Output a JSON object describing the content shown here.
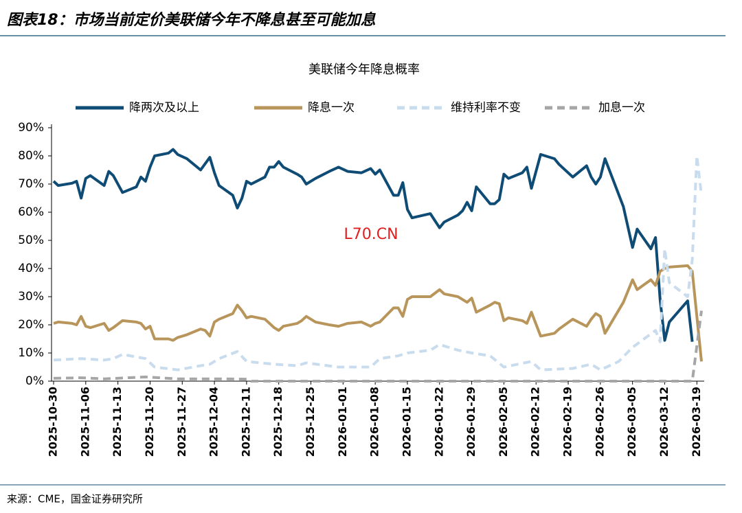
{
  "header": {
    "title": "图表18：市场当前定价美联储今年不降息甚至可能加息"
  },
  "chart_data": {
    "type": "line",
    "title": "美联储今年降息概率",
    "watermark": "L70.CN",
    "xlim": [
      "2025-10-30",
      "2026-03-20"
    ],
    "xticks": [
      "2025-10-30",
      "2025-11-06",
      "2025-11-13",
      "2025-11-20",
      "2025-11-27",
      "2025-12-04",
      "2025-12-11",
      "2025-12-18",
      "2025-12-25",
      "2026-01-01",
      "2026-01-08",
      "2026-01-15",
      "2026-01-22",
      "2026-01-29",
      "2026-02-05",
      "2026-02-12",
      "2026-02-19",
      "2026-02-26",
      "2026-03-05",
      "2026-03-12",
      "2026-03-19"
    ],
    "ylim": [
      0,
      90
    ],
    "yticks": [
      {
        "value": 0,
        "label": "0%"
      },
      {
        "value": 10,
        "label": "10%"
      },
      {
        "value": 20,
        "label": "20%"
      },
      {
        "value": 30,
        "label": "30%"
      },
      {
        "value": 40,
        "label": "40%"
      },
      {
        "value": 50,
        "label": "50%"
      },
      {
        "value": 60,
        "label": "60%"
      },
      {
        "value": 70,
        "label": "70%"
      },
      {
        "value": 80,
        "label": "80%"
      },
      {
        "value": 90,
        "label": "90%"
      }
    ],
    "legend": "top",
    "series": [
      {
        "name": "降两次及以上",
        "color": "#0f4c75",
        "style": "solid",
        "x": [
          "2025-10-30",
          "2025-10-31",
          "2025-11-03",
          "2025-11-04",
          "2025-11-05",
          "2025-11-06",
          "2025-11-07",
          "2025-11-10",
          "2025-11-11",
          "2025-11-12",
          "2025-11-14",
          "2025-11-17",
          "2025-11-18",
          "2025-11-19",
          "2025-11-20",
          "2025-11-21",
          "2025-11-24",
          "2025-11-25",
          "2025-11-26",
          "2025-11-28",
          "2025-12-01",
          "2025-12-03",
          "2025-12-04",
          "2025-12-05",
          "2025-12-08",
          "2025-12-09",
          "2025-12-10",
          "2025-12-11",
          "2025-12-12",
          "2025-12-15",
          "2025-12-16",
          "2025-12-17",
          "2025-12-18",
          "2025-12-19",
          "2025-12-22",
          "2025-12-23",
          "2025-12-24",
          "2025-12-26",
          "2025-12-29",
          "2025-12-31",
          "2026-01-02",
          "2026-01-05",
          "2026-01-07",
          "2026-01-08",
          "2026-01-09",
          "2026-01-12",
          "2026-01-13",
          "2026-01-14",
          "2026-01-15",
          "2026-01-16",
          "2026-01-20",
          "2026-01-22",
          "2026-01-23",
          "2026-01-26",
          "2026-01-27",
          "2026-01-28",
          "2026-01-29",
          "2026-01-30",
          "2026-02-02",
          "2026-02-03",
          "2026-02-04",
          "2026-02-05",
          "2026-02-06",
          "2026-02-09",
          "2026-02-10",
          "2026-02-11",
          "2026-02-13",
          "2026-02-16",
          "2026-02-17",
          "2026-02-20",
          "2026-02-23",
          "2026-02-24",
          "2026-02-25",
          "2026-02-26",
          "2026-02-27",
          "2026-03-03",
          "2026-03-05",
          "2026-03-06",
          "2026-03-09",
          "2026-03-10",
          "2026-03-11",
          "2026-03-12",
          "2026-03-13",
          "2026-03-17",
          "2026-03-18"
        ],
        "values": [
          71,
          69.5,
          70.3,
          71,
          65,
          72,
          73,
          69.5,
          74.5,
          73,
          67,
          69,
          72.5,
          71,
          76,
          80,
          81,
          82.3,
          80.5,
          79,
          75,
          79.5,
          74,
          69.5,
          66,
          61.5,
          65,
          71,
          70,
          72.5,
          76,
          76,
          78,
          76,
          73.5,
          72.5,
          70,
          72,
          74.5,
          76,
          74.5,
          74,
          75.5,
          73.5,
          75,
          66,
          66,
          70.5,
          61,
          58,
          59.5,
          54.5,
          56.5,
          59,
          60.5,
          63.5,
          60.5,
          69,
          63,
          63,
          64.5,
          73.5,
          72,
          74,
          76,
          68.5,
          80.5,
          79,
          77,
          72.5,
          76.5,
          72.5,
          70,
          72.5,
          79,
          62,
          47.5,
          54,
          47,
          51,
          29,
          14.5,
          21,
          28.5,
          14
        ]
      },
      {
        "name": "降息一次",
        "color": "#b8955a",
        "style": "solid",
        "x": [
          "2025-10-30",
          "2025-10-31",
          "2025-11-03",
          "2025-11-04",
          "2025-11-05",
          "2025-11-06",
          "2025-11-07",
          "2025-11-10",
          "2025-11-11",
          "2025-11-12",
          "2025-11-14",
          "2025-11-17",
          "2025-11-18",
          "2025-11-19",
          "2025-11-20",
          "2025-11-21",
          "2025-11-24",
          "2025-11-25",
          "2025-11-26",
          "2025-11-28",
          "2025-12-01",
          "2025-12-02",
          "2025-12-03",
          "2025-12-04",
          "2025-12-05",
          "2025-12-08",
          "2025-12-09",
          "2025-12-10",
          "2025-12-11",
          "2025-12-12",
          "2025-12-15",
          "2025-12-16",
          "2025-12-17",
          "2025-12-18",
          "2025-12-19",
          "2025-12-22",
          "2025-12-23",
          "2025-12-24",
          "2025-12-26",
          "2025-12-29",
          "2025-12-31",
          "2026-01-02",
          "2026-01-05",
          "2026-01-07",
          "2026-01-08",
          "2026-01-09",
          "2026-01-12",
          "2026-01-13",
          "2026-01-14",
          "2026-01-15",
          "2026-01-16",
          "2026-01-20",
          "2026-01-22",
          "2026-01-23",
          "2026-01-26",
          "2026-01-27",
          "2026-01-28",
          "2026-01-29",
          "2026-01-30",
          "2026-02-02",
          "2026-02-03",
          "2026-02-04",
          "2026-02-05",
          "2026-02-06",
          "2026-02-09",
          "2026-02-10",
          "2026-02-11",
          "2026-02-13",
          "2026-02-16",
          "2026-02-17",
          "2026-02-20",
          "2026-02-23",
          "2026-02-24",
          "2026-02-25",
          "2026-02-26",
          "2026-02-27",
          "2026-03-03",
          "2026-03-05",
          "2026-03-06",
          "2026-03-09",
          "2026-03-10",
          "2026-03-11",
          "2026-03-12",
          "2026-03-13",
          "2026-03-17",
          "2026-03-18",
          "2026-03-20"
        ],
        "values": [
          20.5,
          21,
          20.5,
          20,
          23,
          19.5,
          19,
          20.5,
          18,
          19,
          21.5,
          21,
          20.5,
          18.5,
          19.5,
          15,
          15,
          14.5,
          15.5,
          16.5,
          18.5,
          18,
          16,
          21,
          22,
          24,
          27,
          25,
          22.5,
          23,
          22,
          20.5,
          19,
          18,
          19.5,
          20.5,
          21.5,
          23,
          21,
          20,
          19.5,
          20.5,
          21,
          19.5,
          20.5,
          21,
          26,
          26,
          23,
          29,
          30,
          30,
          32.5,
          31,
          30,
          29,
          28,
          29.5,
          24.5,
          27,
          28,
          27.5,
          21.5,
          22.5,
          21.5,
          20.5,
          24.5,
          16,
          17,
          18.5,
          22,
          19.5,
          22,
          24,
          23,
          17,
          28,
          36,
          32.5,
          36,
          34,
          39,
          40,
          40.5,
          41,
          39,
          7
        ]
      },
      {
        "name": "维持利率不变",
        "color": "#c9dcee",
        "style": "dashed",
        "x": [
          "2025-10-30",
          "2025-11-05",
          "2025-11-10",
          "2025-11-12",
          "2025-11-14",
          "2025-11-19",
          "2025-11-21",
          "2025-11-26",
          "2025-12-01",
          "2025-12-03",
          "2025-12-05",
          "2025-12-09",
          "2025-12-11",
          "2025-12-17",
          "2025-12-22",
          "2025-12-24",
          "2025-12-31",
          "2026-01-07",
          "2026-01-09",
          "2026-01-13",
          "2026-01-15",
          "2026-01-20",
          "2026-01-22",
          "2026-01-26",
          "2026-01-29",
          "2026-02-02",
          "2026-02-05",
          "2026-02-11",
          "2026-02-13",
          "2026-02-20",
          "2026-02-24",
          "2026-02-26",
          "2026-03-02",
          "2026-03-05",
          "2026-03-10",
          "2026-03-11",
          "2026-03-12",
          "2026-03-13",
          "2026-03-17",
          "2026-03-18",
          "2026-03-19",
          "2026-03-20"
        ],
        "values": [
          7.5,
          8,
          7.5,
          8,
          9.5,
          8,
          5,
          4,
          5.5,
          6,
          8,
          10.5,
          7,
          6,
          5.5,
          6.5,
          5,
          5,
          8,
          9,
          10,
          11,
          13,
          11,
          10,
          9,
          5,
          7,
          4,
          4.5,
          6,
          4,
          7,
          12,
          18,
          14,
          47,
          35,
          30,
          43,
          80,
          66
        ]
      },
      {
        "name": "加息一次",
        "color": "#a6a6a6",
        "style": "dashed",
        "x": [
          "2025-10-30",
          "2025-11-05",
          "2025-11-10",
          "2025-11-19",
          "2025-11-26",
          "2025-12-05",
          "2025-12-11",
          "2025-12-12",
          "2026-03-18",
          "2026-03-20"
        ],
        "values": [
          1,
          1.2,
          0.8,
          1.5,
          0.8,
          0.8,
          0.7,
          0,
          0,
          25
        ]
      }
    ]
  },
  "footer": {
    "source": "来源：CME，国金证券研究所"
  }
}
